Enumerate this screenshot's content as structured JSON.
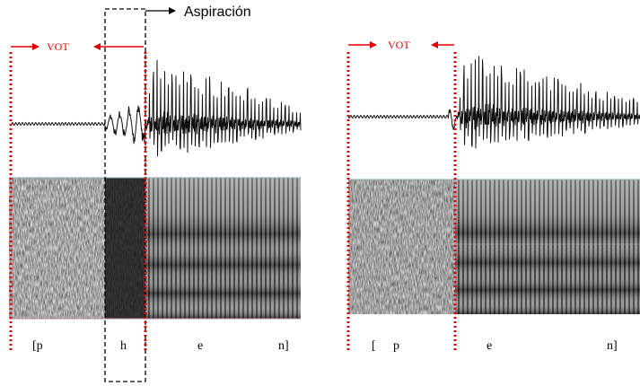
{
  "annotation": "Aspiración",
  "left": {
    "vot_label": "VOT",
    "segments": [
      "[p",
      "h",
      "e",
      "n]"
    ]
  },
  "right": {
    "vot_label": "VOT",
    "segments": [
      "[",
      "p",
      "e",
      "n]"
    ]
  }
}
